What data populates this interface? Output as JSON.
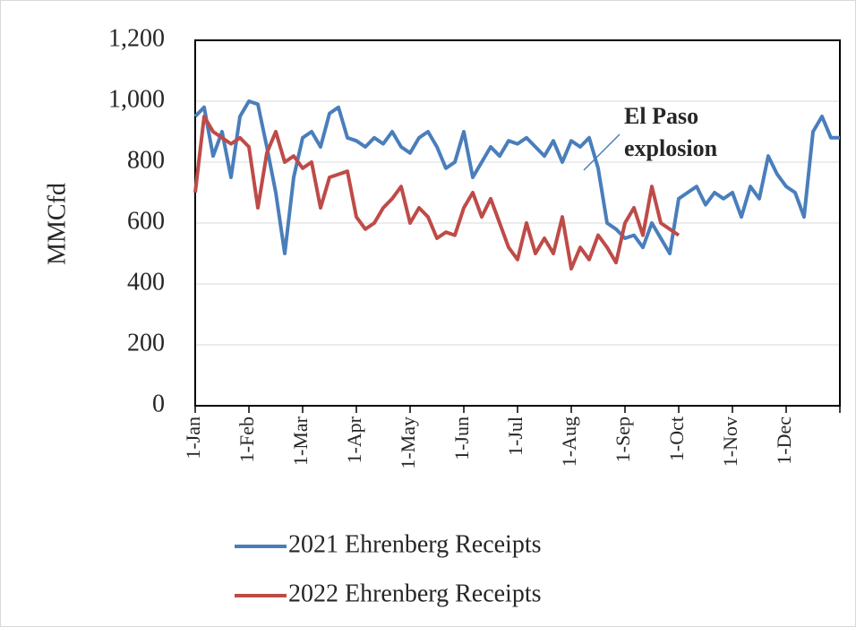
{
  "chart_data": {
    "type": "line",
    "y_label": "MMCfd",
    "annotation": [
      "El Paso",
      "explosion"
    ],
    "categories": [
      "1-Jan",
      null,
      null,
      null,
      null,
      null,
      "1-Feb",
      null,
      null,
      null,
      null,
      null,
      "1-Mar",
      null,
      null,
      null,
      null,
      null,
      "1-Apr",
      null,
      null,
      null,
      null,
      null,
      "1-May",
      null,
      null,
      null,
      null,
      null,
      "1-Jun",
      null,
      null,
      null,
      null,
      null,
      "1-Jul",
      null,
      null,
      null,
      null,
      null,
      "1-Aug",
      null,
      null,
      null,
      null,
      null,
      "1-Sep",
      null,
      null,
      null,
      null,
      null,
      "1-Oct",
      null,
      null,
      null,
      null,
      null,
      "1-Nov",
      null,
      null,
      null,
      null,
      null,
      "1-Dec",
      null,
      null,
      null,
      null,
      null,
      null
    ],
    "series": [
      {
        "name": "2021 Ehrenberg Receipts",
        "color": "#4a7ebb",
        "values": [
          950,
          980,
          820,
          900,
          750,
          950,
          1000,
          990,
          850,
          700,
          500,
          750,
          880,
          900,
          850,
          960,
          980,
          880,
          870,
          850,
          880,
          860,
          900,
          850,
          830,
          880,
          900,
          850,
          780,
          800,
          900,
          750,
          800,
          850,
          820,
          870,
          860,
          880,
          850,
          820,
          870,
          800,
          870,
          850,
          880,
          780,
          600,
          580,
          550,
          560,
          520,
          600,
          550,
          500,
          680,
          700,
          720,
          660,
          700,
          680,
          700,
          620,
          720,
          680,
          820,
          760,
          720,
          700,
          620,
          900,
          950,
          880,
          880
        ]
      },
      {
        "name": "2022 Ehrenberg Receipts",
        "color": "#be4b48",
        "values": [
          700,
          950,
          900,
          880,
          860,
          880,
          850,
          650,
          830,
          900,
          800,
          820,
          780,
          800,
          650,
          750,
          760,
          770,
          620,
          580,
          600,
          650,
          680,
          720,
          600,
          650,
          620,
          550,
          570,
          560,
          650,
          700,
          620,
          680,
          600,
          520,
          480,
          600,
          500,
          550,
          500,
          620,
          450,
          520,
          480,
          560,
          520,
          470,
          600,
          650,
          560,
          720,
          600,
          580,
          560,
          null,
          null,
          null,
          null,
          null,
          null,
          null,
          null,
          null,
          null,
          null,
          null,
          null,
          null,
          null,
          null,
          null,
          null
        ]
      }
    ],
    "ylim": [
      0,
      1200
    ],
    "yticks": [
      0,
      200,
      400,
      600,
      800,
      {
        "value": 1000,
        "label": "1,000"
      },
      {
        "value": 1200,
        "label": "1,200"
      }
    ],
    "grid": true
  }
}
